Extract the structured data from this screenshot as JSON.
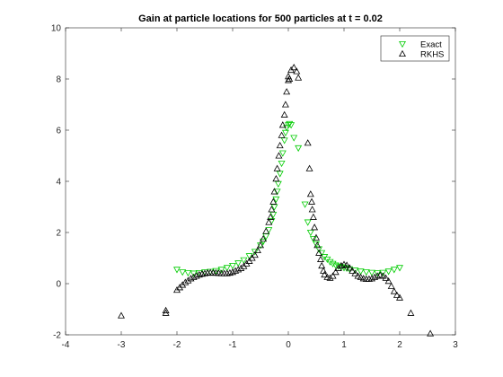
{
  "chart_data": {
    "type": "scatter",
    "title": "Gain at particle locations for 500 particles at t = 0.02",
    "xlabel": "",
    "ylabel": "",
    "xlim": [
      -4,
      3
    ],
    "ylim": [
      -2,
      10
    ],
    "xticks": [
      "-4",
      "-3",
      "-2",
      "-1",
      "0",
      "1",
      "2",
      "3"
    ],
    "yticks": [
      "-2",
      "0",
      "2",
      "4",
      "6",
      "8",
      "10"
    ],
    "grid": false,
    "legend_position": "top-right",
    "series": [
      {
        "name": "Exact",
        "marker": "triangle-down",
        "color": "#00cc00",
        "points": [
          [
            -2.0,
            0.55
          ],
          [
            -1.9,
            0.45
          ],
          [
            -1.8,
            0.42
          ],
          [
            -1.7,
            0.4
          ],
          [
            -1.6,
            0.42
          ],
          [
            -1.5,
            0.45
          ],
          [
            -1.4,
            0.47
          ],
          [
            -1.3,
            0.5
          ],
          [
            -1.2,
            0.55
          ],
          [
            -1.1,
            0.62
          ],
          [
            -1.0,
            0.7
          ],
          [
            -0.9,
            0.8
          ],
          [
            -0.8,
            0.92
          ],
          [
            -0.7,
            1.08
          ],
          [
            -0.6,
            1.25
          ],
          [
            -0.5,
            1.5
          ],
          [
            -0.45,
            1.65
          ],
          [
            -0.4,
            1.85
          ],
          [
            -0.35,
            2.1
          ],
          [
            -0.3,
            2.45
          ],
          [
            -0.27,
            2.7
          ],
          [
            -0.25,
            3.0
          ],
          [
            -0.22,
            3.3
          ],
          [
            -0.2,
            3.6
          ],
          [
            -0.18,
            3.9
          ],
          [
            -0.15,
            4.3
          ],
          [
            -0.12,
            4.7
          ],
          [
            -0.1,
            5.1
          ],
          [
            -0.07,
            5.6
          ],
          [
            -0.05,
            5.9
          ],
          [
            -0.03,
            6.1
          ],
          [
            0.0,
            6.2
          ],
          [
            0.02,
            6.25
          ],
          [
            0.05,
            6.2
          ],
          [
            0.1,
            5.7
          ],
          [
            0.18,
            5.3
          ],
          [
            0.3,
            3.1
          ],
          [
            0.35,
            2.4
          ],
          [
            0.4,
            2.0
          ],
          [
            0.45,
            1.75
          ],
          [
            0.5,
            1.55
          ],
          [
            0.55,
            1.35
          ],
          [
            0.6,
            1.2
          ],
          [
            0.65,
            1.05
          ],
          [
            0.7,
            0.95
          ],
          [
            0.75,
            0.85
          ],
          [
            0.8,
            0.78
          ],
          [
            0.85,
            0.72
          ],
          [
            0.9,
            0.68
          ],
          [
            0.95,
            0.65
          ],
          [
            1.0,
            0.62
          ],
          [
            1.05,
            0.6
          ],
          [
            1.1,
            0.57
          ],
          [
            1.2,
            0.52
          ],
          [
            1.3,
            0.48
          ],
          [
            1.4,
            0.45
          ],
          [
            1.5,
            0.43
          ],
          [
            1.6,
            0.42
          ],
          [
            1.7,
            0.43
          ],
          [
            1.8,
            0.48
          ],
          [
            1.9,
            0.55
          ],
          [
            2.0,
            0.62
          ]
        ]
      },
      {
        "name": "RKHS",
        "marker": "triangle-up",
        "color": "#000000",
        "points": [
          [
            -3.0,
            -1.25
          ],
          [
            -2.2,
            -1.15
          ],
          [
            -2.2,
            -1.05
          ],
          [
            -2.0,
            -0.25
          ],
          [
            -1.95,
            -0.15
          ],
          [
            -1.9,
            -0.05
          ],
          [
            -1.85,
            0.05
          ],
          [
            -1.8,
            0.12
          ],
          [
            -1.75,
            0.2
          ],
          [
            -1.7,
            0.25
          ],
          [
            -1.65,
            0.3
          ],
          [
            -1.6,
            0.35
          ],
          [
            -1.55,
            0.38
          ],
          [
            -1.5,
            0.4
          ],
          [
            -1.45,
            0.42
          ],
          [
            -1.4,
            0.43
          ],
          [
            -1.35,
            0.42
          ],
          [
            -1.3,
            0.42
          ],
          [
            -1.25,
            0.41
          ],
          [
            -1.2,
            0.4
          ],
          [
            -1.15,
            0.4
          ],
          [
            -1.1,
            0.4
          ],
          [
            -1.05,
            0.42
          ],
          [
            -1.0,
            0.45
          ],
          [
            -0.95,
            0.5
          ],
          [
            -0.9,
            0.55
          ],
          [
            -0.85,
            0.6
          ],
          [
            -0.8,
            0.68
          ],
          [
            -0.75,
            0.78
          ],
          [
            -0.7,
            0.88
          ],
          [
            -0.65,
            1.0
          ],
          [
            -0.6,
            1.12
          ],
          [
            -0.55,
            1.3
          ],
          [
            -0.5,
            1.5
          ],
          [
            -0.45,
            1.75
          ],
          [
            -0.4,
            2.05
          ],
          [
            -0.35,
            2.4
          ],
          [
            -0.32,
            2.6
          ],
          [
            -0.3,
            2.9
          ],
          [
            -0.27,
            3.2
          ],
          [
            -0.25,
            3.6
          ],
          [
            -0.22,
            4.1
          ],
          [
            -0.2,
            4.5
          ],
          [
            -0.17,
            5.0
          ],
          [
            -0.15,
            5.4
          ],
          [
            -0.12,
            5.8
          ],
          [
            -0.1,
            6.2
          ],
          [
            -0.07,
            6.6
          ],
          [
            -0.05,
            7.0
          ],
          [
            -0.03,
            7.5
          ],
          [
            0.0,
            7.95
          ],
          [
            0.0,
            8.1
          ],
          [
            0.02,
            8.0
          ],
          [
            0.05,
            8.35
          ],
          [
            0.1,
            8.45
          ],
          [
            0.15,
            8.3
          ],
          [
            0.18,
            8.05
          ],
          [
            0.35,
            5.5
          ],
          [
            0.38,
            4.5
          ],
          [
            0.4,
            3.5
          ],
          [
            0.42,
            3.2
          ],
          [
            0.43,
            2.9
          ],
          [
            0.45,
            2.6
          ],
          [
            0.47,
            2.2
          ],
          [
            0.5,
            1.8
          ],
          [
            0.52,
            1.5
          ],
          [
            0.55,
            1.2
          ],
          [
            0.58,
            0.95
          ],
          [
            0.6,
            0.7
          ],
          [
            0.63,
            0.5
          ],
          [
            0.65,
            0.35
          ],
          [
            0.7,
            0.25
          ],
          [
            0.75,
            0.22
          ],
          [
            0.8,
            0.3
          ],
          [
            0.85,
            0.45
          ],
          [
            0.9,
            0.6
          ],
          [
            0.95,
            0.7
          ],
          [
            1.0,
            0.75
          ],
          [
            1.05,
            0.72
          ],
          [
            1.1,
            0.62
          ],
          [
            1.15,
            0.5
          ],
          [
            1.2,
            0.4
          ],
          [
            1.25,
            0.3
          ],
          [
            1.3,
            0.25
          ],
          [
            1.35,
            0.2
          ],
          [
            1.4,
            0.18
          ],
          [
            1.45,
            0.18
          ],
          [
            1.5,
            0.2
          ],
          [
            1.55,
            0.25
          ],
          [
            1.6,
            0.3
          ],
          [
            1.65,
            0.33
          ],
          [
            1.7,
            0.3
          ],
          [
            1.75,
            0.22
          ],
          [
            1.8,
            0.1
          ],
          [
            1.85,
            -0.1
          ],
          [
            1.9,
            -0.3
          ],
          [
            1.95,
            -0.45
          ],
          [
            2.0,
            -0.55
          ],
          [
            2.2,
            -1.15
          ],
          [
            2.55,
            -1.95
          ]
        ]
      }
    ]
  }
}
